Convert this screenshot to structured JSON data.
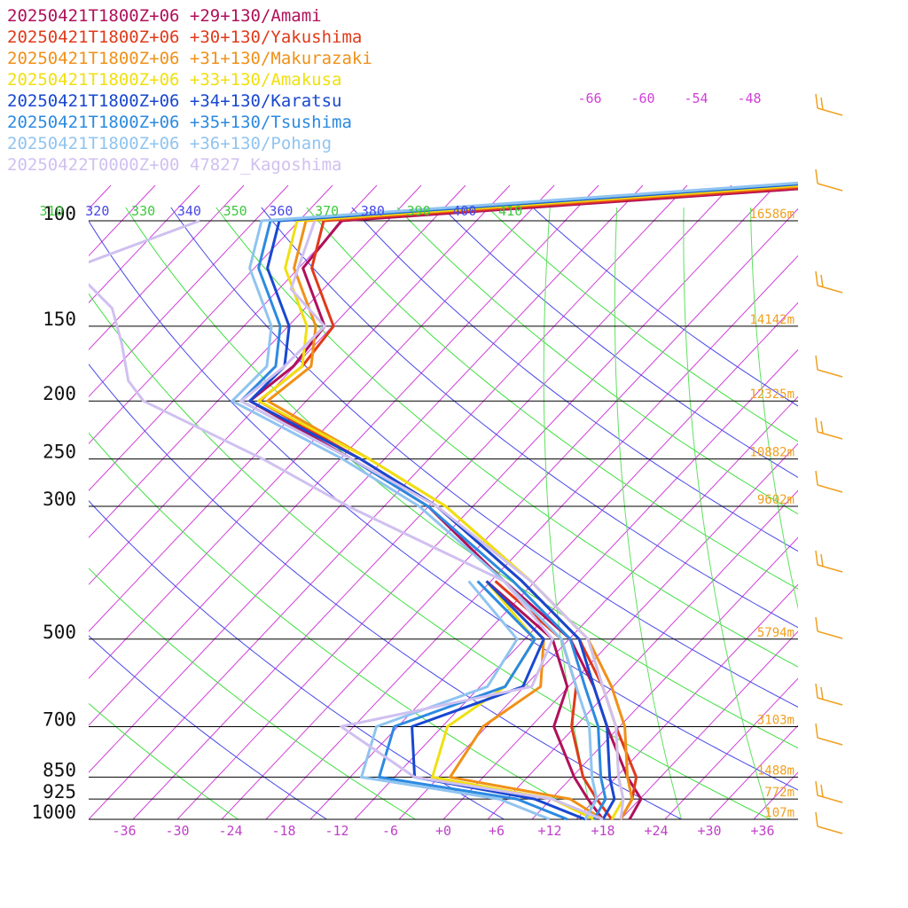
{
  "chart_data": {
    "type": "line",
    "subtype": "skew-t log-p sounding",
    "xlabel": "",
    "ylabel": "",
    "x_ticks": [
      "-36",
      "-30",
      "-24",
      "-18",
      "-12",
      "-6",
      "+0",
      "+6",
      "+12",
      "+18",
      "+24",
      "+30",
      "+36"
    ],
    "xlim": [
      -40,
      40
    ],
    "pressure_levels": [
      {
        "p": 100,
        "label": "100",
        "height": "16586m"
      },
      {
        "p": 150,
        "label": "150",
        "height": "14142m"
      },
      {
        "p": 200,
        "label": "200",
        "height": "12325m"
      },
      {
        "p": 250,
        "label": "250",
        "height": "10882m"
      },
      {
        "p": 300,
        "label": "300",
        "height": "9602m"
      },
      {
        "p": 500,
        "label": "500",
        "height": "5794m"
      },
      {
        "p": 700,
        "label": "700",
        "height": "3103m"
      },
      {
        "p": 850,
        "label": "850",
        "height": "1488m"
      },
      {
        "p": 925,
        "label": "925",
        "height": "772m"
      },
      {
        "p": 1000,
        "label": "1000",
        "height": "107m"
      }
    ],
    "theta_labels": [
      "310",
      "320",
      "330",
      "340",
      "350",
      "360",
      "370",
      "380",
      "390",
      "400",
      "410"
    ],
    "mixing_labels": [
      "-66",
      "-60",
      "-54",
      "-48"
    ],
    "grid": true,
    "legend_position": "top-left",
    "series": [
      {
        "name": "20250421T1800Z+06 +29+130/Amami",
        "color": "#b0105a",
        "temperature": [
          [
            40,
            57
          ],
          [
            60,
            29
          ],
          [
            80,
            8
          ],
          [
            100,
            -79
          ],
          [
            120,
            -78
          ],
          [
            150,
            -69
          ],
          [
            175,
            -68
          ],
          [
            200,
            -69
          ],
          [
            250,
            -51
          ],
          [
            300,
            -37
          ],
          [
            400,
            -20
          ],
          [
            500,
            -6
          ],
          [
            600,
            2
          ],
          [
            700,
            8
          ],
          [
            850,
            16
          ],
          [
            925,
            20
          ],
          [
            1000,
            21
          ]
        ],
        "dewpoint": [
          [
            400,
            -22
          ],
          [
            500,
            -8
          ],
          [
            600,
            -1
          ],
          [
            700,
            2
          ],
          [
            850,
            10
          ],
          [
            925,
            14
          ],
          [
            1000,
            18
          ]
        ]
      },
      {
        "name": "20250421T1800Z+06 +30+130/Yakushima",
        "color": "#e03a1a",
        "temperature": [
          [
            40,
            55
          ],
          [
            60,
            28
          ],
          [
            80,
            6
          ],
          [
            100,
            -81
          ],
          [
            120,
            -77
          ],
          [
            150,
            -68
          ],
          [
            175,
            -67
          ],
          [
            200,
            -68
          ],
          [
            250,
            -50
          ],
          [
            300,
            -36
          ],
          [
            400,
            -18
          ],
          [
            500,
            -5
          ],
          [
            600,
            3
          ],
          [
            700,
            9
          ],
          [
            850,
            17
          ],
          [
            925,
            19
          ],
          [
            1000,
            20
          ]
        ],
        "dewpoint": [
          [
            400,
            -21
          ],
          [
            500,
            -7
          ],
          [
            600,
            0
          ],
          [
            700,
            4
          ],
          [
            850,
            11
          ],
          [
            925,
            15
          ],
          [
            1000,
            19
          ]
        ]
      },
      {
        "name": "20250421T1800Z+06 +31+130/Makurazaki",
        "color": "#f09018",
        "temperature": [
          [
            40,
            53
          ],
          [
            60,
            26
          ],
          [
            80,
            4
          ],
          [
            100,
            -83
          ],
          [
            120,
            -79
          ],
          [
            150,
            -70
          ],
          [
            175,
            -66
          ],
          [
            200,
            -67
          ],
          [
            250,
            -49
          ],
          [
            300,
            -35
          ],
          [
            400,
            -17
          ],
          [
            500,
            -4
          ],
          [
            600,
            4
          ],
          [
            700,
            10
          ],
          [
            850,
            16
          ],
          [
            925,
            19
          ],
          [
            1000,
            20
          ]
        ],
        "dewpoint": [
          [
            400,
            -22
          ],
          [
            500,
            -9
          ],
          [
            600,
            -4
          ],
          [
            700,
            -6
          ],
          [
            850,
            -4
          ],
          [
            925,
            12
          ],
          [
            1000,
            18
          ]
        ]
      },
      {
        "name": "20250421T1800Z+06 +33+130/Amakusa",
        "color": "#f0e010",
        "temperature": [
          [
            40,
            52
          ],
          [
            60,
            25
          ],
          [
            80,
            2
          ],
          [
            100,
            -84
          ],
          [
            120,
            -80
          ],
          [
            150,
            -71
          ],
          [
            175,
            -67
          ],
          [
            200,
            -68
          ],
          [
            250,
            -49
          ],
          [
            300,
            -35
          ],
          [
            400,
            -17
          ],
          [
            500,
            -4
          ],
          [
            600,
            3
          ],
          [
            700,
            9
          ],
          [
            850,
            15
          ],
          [
            925,
            18
          ],
          [
            1000,
            19
          ]
        ],
        "dewpoint": [
          [
            400,
            -22
          ],
          [
            500,
            -10
          ],
          [
            600,
            -8
          ],
          [
            700,
            -10
          ],
          [
            850,
            -6
          ],
          [
            925,
            10
          ],
          [
            1000,
            17
          ]
        ]
      },
      {
        "name": "20250421T1800Z+06 +34+130/Karatsu",
        "color": "#1848d0",
        "temperature": [
          [
            40,
            50
          ],
          [
            60,
            23
          ],
          [
            80,
            0
          ],
          [
            100,
            -86
          ],
          [
            120,
            -82
          ],
          [
            150,
            -73
          ],
          [
            175,
            -69
          ],
          [
            200,
            -69
          ],
          [
            250,
            -50
          ],
          [
            300,
            -36
          ],
          [
            400,
            -18
          ],
          [
            500,
            -5
          ],
          [
            600,
            2
          ],
          [
            700,
            8
          ],
          [
            850,
            14
          ],
          [
            925,
            17
          ],
          [
            1000,
            18
          ]
        ],
        "dewpoint": [
          [
            400,
            -22
          ],
          [
            500,
            -9
          ],
          [
            600,
            -6
          ],
          [
            700,
            -14
          ],
          [
            850,
            -8
          ],
          [
            925,
            8
          ],
          [
            1000,
            16
          ]
        ]
      },
      {
        "name": "20250421T1800Z+06 +35+130/Tsushima",
        "color": "#2c8ae0",
        "temperature": [
          [
            40,
            49
          ],
          [
            60,
            22
          ],
          [
            80,
            -1
          ],
          [
            100,
            -87
          ],
          [
            120,
            -83
          ],
          [
            150,
            -74
          ],
          [
            175,
            -70
          ],
          [
            200,
            -70
          ],
          [
            250,
            -51
          ],
          [
            300,
            -37
          ],
          [
            400,
            -19
          ],
          [
            500,
            -6
          ],
          [
            600,
            1
          ],
          [
            700,
            7
          ],
          [
            850,
            13
          ],
          [
            925,
            16
          ],
          [
            1000,
            17
          ]
        ],
        "dewpoint": [
          [
            400,
            -23
          ],
          [
            500,
            -10
          ],
          [
            600,
            -8
          ],
          [
            700,
            -16
          ],
          [
            850,
            -12
          ],
          [
            925,
            6
          ],
          [
            1000,
            14
          ]
        ]
      },
      {
        "name": "20250421T1800Z+06 +36+130/Pohang",
        "color": "#90c4f0",
        "temperature": [
          [
            40,
            48
          ],
          [
            60,
            21
          ],
          [
            80,
            -2
          ],
          [
            100,
            -88
          ],
          [
            120,
            -84
          ],
          [
            150,
            -75
          ],
          [
            175,
            -71
          ],
          [
            200,
            -71
          ],
          [
            250,
            -52
          ],
          [
            300,
            -38
          ],
          [
            400,
            -20
          ],
          [
            500,
            -7
          ],
          [
            600,
            0
          ],
          [
            700,
            6
          ],
          [
            850,
            12
          ],
          [
            925,
            15
          ],
          [
            1000,
            16
          ]
        ],
        "dewpoint": [
          [
            400,
            -24
          ],
          [
            500,
            -12
          ],
          [
            600,
            -10
          ],
          [
            700,
            -18
          ],
          [
            850,
            -14
          ],
          [
            925,
            4
          ],
          [
            1000,
            12
          ]
        ]
      },
      {
        "name": "20250422T0000Z+00 47827_Kagoshima",
        "color": "#d0c0f0",
        "temperature": [
          [
            100,
            -82
          ],
          [
            130,
            -77
          ],
          [
            150,
            -69
          ],
          [
            175,
            -69
          ],
          [
            200,
            -70
          ],
          [
            250,
            -51
          ],
          [
            300,
            -36
          ],
          [
            400,
            -17
          ],
          [
            500,
            -4
          ],
          [
            600,
            3
          ],
          [
            700,
            9
          ],
          [
            850,
            15
          ],
          [
            925,
            18
          ],
          [
            1000,
            20
          ]
        ],
        "dewpoint": [
          [
            100,
            -95
          ],
          [
            120,
            -104
          ],
          [
            140,
            -95
          ],
          [
            160,
            -90
          ],
          [
            185,
            -85
          ],
          [
            200,
            -81
          ],
          [
            250,
            -61
          ],
          [
            300,
            -46
          ],
          [
            400,
            -20
          ],
          [
            500,
            -8
          ],
          [
            600,
            -5
          ],
          [
            700,
            -22
          ],
          [
            850,
            -8
          ],
          [
            925,
            10
          ],
          [
            1000,
            18
          ]
        ]
      }
    ]
  }
}
